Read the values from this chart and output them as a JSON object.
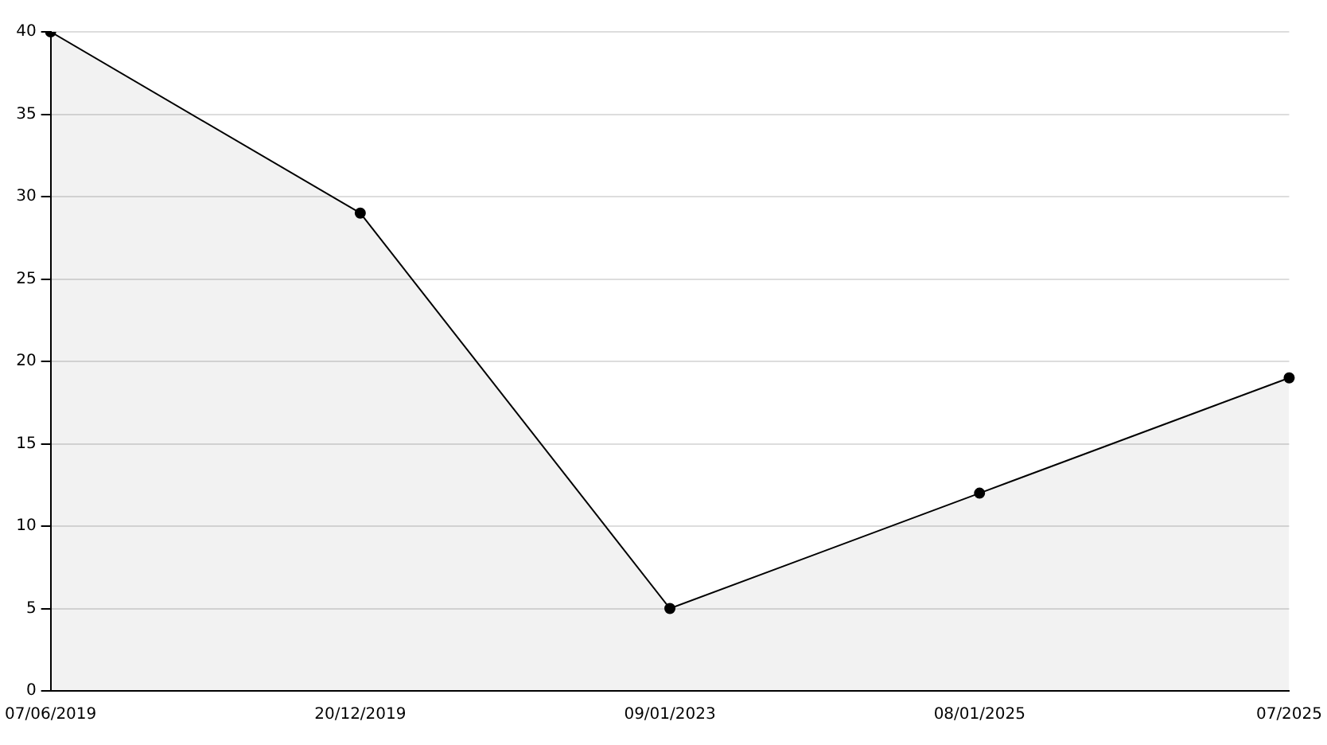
{
  "chart_data": {
    "type": "area",
    "categories": [
      "07/06/2019",
      "20/12/2019",
      "09/01/2023",
      "08/01/2025",
      "07/2025"
    ],
    "series": [
      {
        "color": "#000000",
        "values": [
          40,
          29,
          5,
          12,
          19
        ]
      }
    ],
    "ylim": [
      0,
      40
    ],
    "yticks": [
      0,
      5,
      10,
      15,
      20,
      25,
      30,
      35,
      40
    ],
    "grid": "y",
    "legend": false,
    "marker": "circle",
    "line_style": "solid"
  }
}
